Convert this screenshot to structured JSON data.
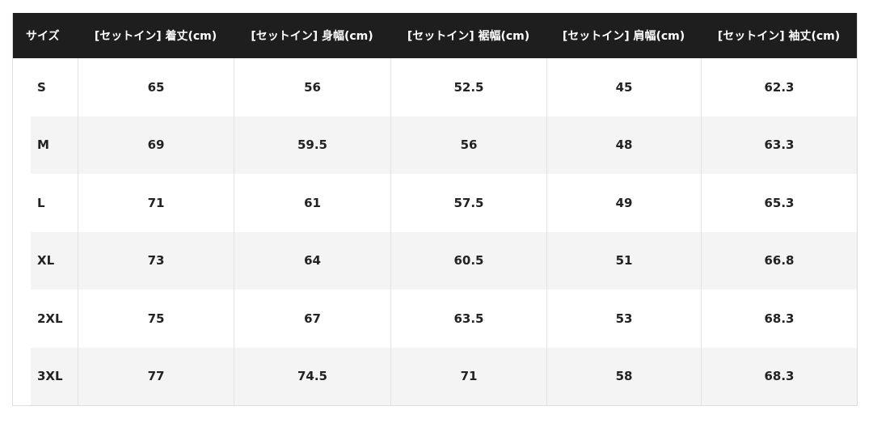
{
  "headers": [
    "サイズ",
    "[セットイン] 着丈(cm)",
    "[セットイン] 身幅(cm)",
    "[セットイン] 裾幅(cm)",
    "[セットイン] 肩幅(cm)",
    "[セットイン] 袖丈(cm)"
  ],
  "rows": [
    [
      "S",
      "65",
      "56",
      "52.5",
      "45",
      "62.3"
    ],
    [
      "M",
      "69",
      "59.5",
      "56",
      "48",
      "63.3"
    ],
    [
      "L",
      "71",
      "61",
      "57.5",
      "49",
      "65.3"
    ],
    [
      "XL",
      "73",
      "64",
      "60.5",
      "51",
      "66.8"
    ],
    [
      "2XL",
      "75",
      "67",
      "63.5",
      "53",
      "68.3"
    ],
    [
      "3XL",
      "77",
      "74.5",
      "71",
      "58",
      "68.3"
    ]
  ]
}
